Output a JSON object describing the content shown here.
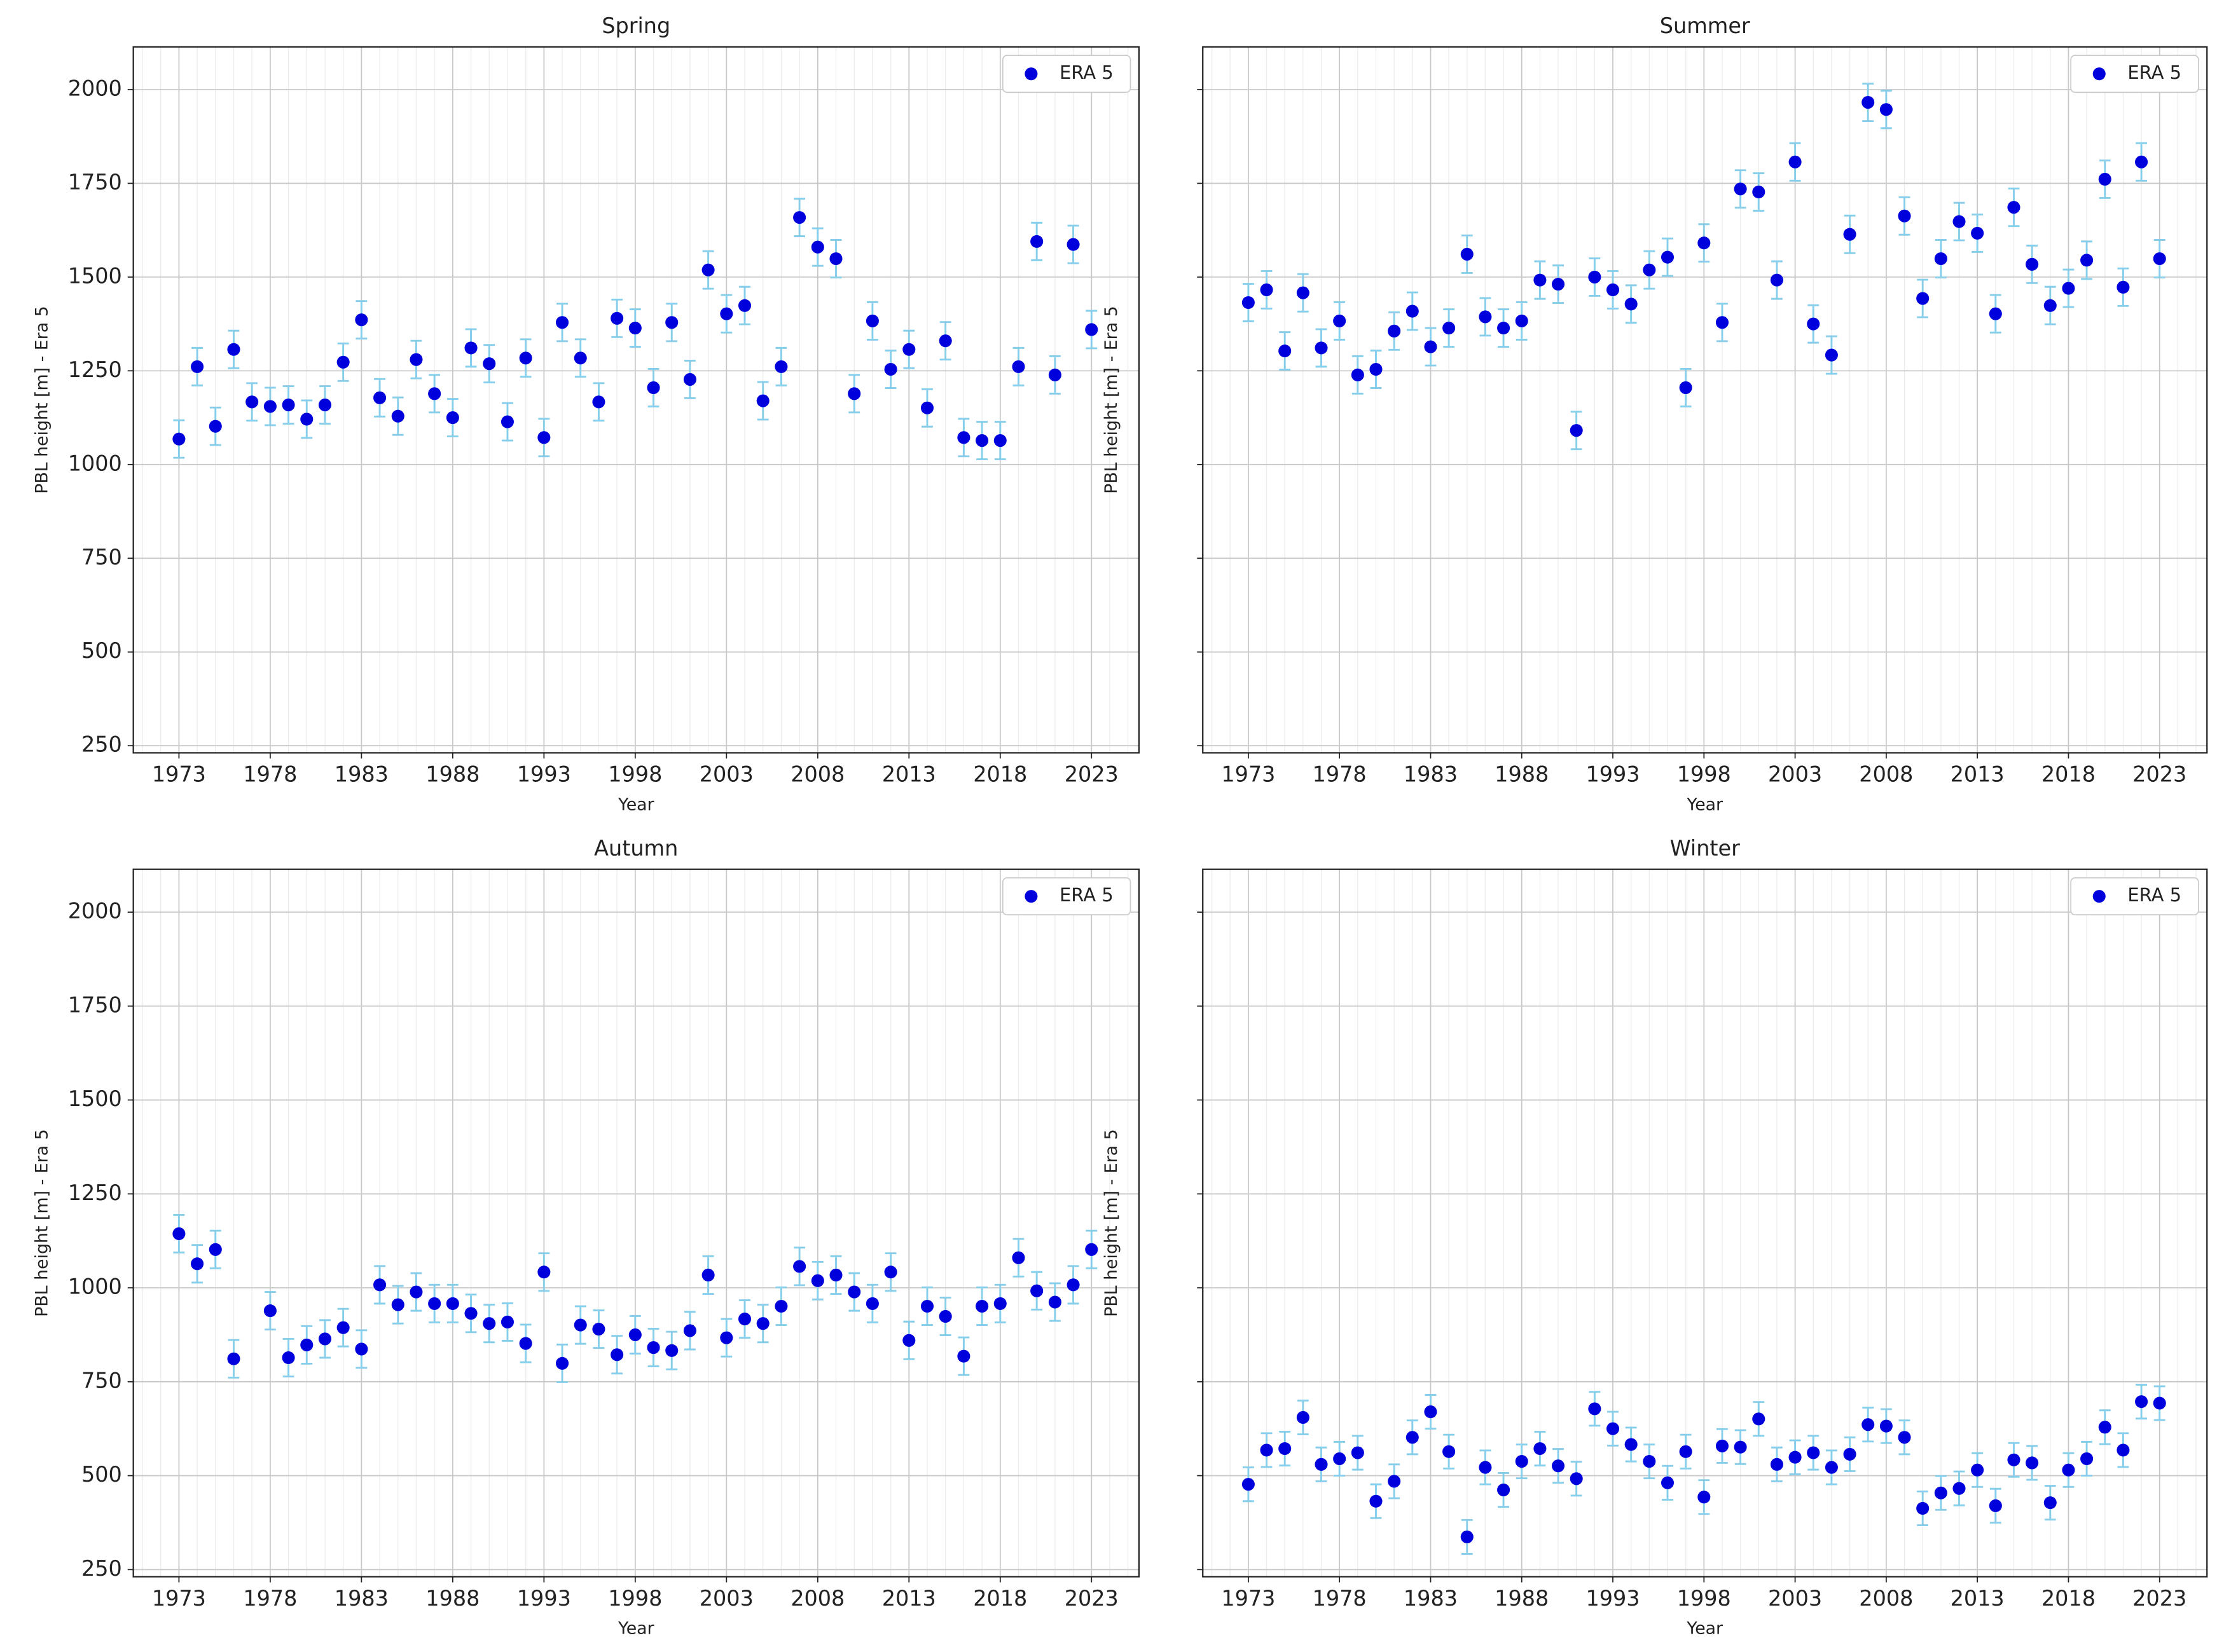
{
  "chart_data": [
    {
      "type": "scatter",
      "title": "Spring",
      "xlabel": "Year",
      "ylabel": "PBL height [m] - Era 5",
      "x": [
        1973,
        1974,
        1975,
        1976,
        1977,
        1978,
        1979,
        1980,
        1981,
        1982,
        1983,
        1984,
        1985,
        1986,
        1987,
        1988,
        1989,
        1990,
        1991,
        1992,
        1993,
        1994,
        1995,
        1996,
        1997,
        1998,
        1999,
        2000,
        2001,
        2002,
        2003,
        2004,
        2005,
        2006,
        2007,
        2008,
        2009,
        2010,
        2011,
        2012,
        2013,
        2014,
        2015,
        2016,
        2017,
        2018,
        2019,
        2020,
        2021,
        2022,
        2023
      ],
      "series": [
        {
          "name": "ERA 5",
          "color": "#0000dd",
          "values": [
            1068,
            1261,
            1102,
            1307,
            1167,
            1155,
            1159,
            1121,
            1159,
            1273,
            1386,
            1178,
            1129,
            1280,
            1189,
            1125,
            1311,
            1269,
            1114,
            1284,
            1072,
            1379,
            1284,
            1167,
            1390,
            1364,
            1205,
            1379,
            1227,
            1519,
            1402,
            1424,
            1170,
            1261,
            1659,
            1580,
            1549,
            1189,
            1383,
            1254,
            1307,
            1151,
            1330,
            1072,
            1064,
            1064,
            1261,
            1595,
            1239,
            1587,
            1360
          ]
        }
      ],
      "yerr": 50,
      "err_color": "#87ceeb",
      "xlim": [
        1970.5,
        2025.6
      ],
      "ylim": [
        231,
        2114
      ],
      "xticks": [
        1973,
        1978,
        1983,
        1988,
        1993,
        1998,
        2003,
        2008,
        2013,
        2018,
        2023
      ],
      "yticks": [
        250,
        500,
        750,
        1000,
        1250,
        1500,
        1750,
        2000
      ],
      "ytick_labels": true,
      "grid": true,
      "minor_grid": true,
      "legend": "upper right"
    },
    {
      "type": "scatter",
      "title": "Summer",
      "xlabel": "Year",
      "ylabel": "PBL height [m] - Era 5",
      "x": [
        1973,
        1974,
        1975,
        1976,
        1977,
        1978,
        1979,
        1980,
        1981,
        1982,
        1983,
        1984,
        1985,
        1986,
        1987,
        1988,
        1989,
        1990,
        1991,
        1992,
        1993,
        1994,
        1995,
        1996,
        1997,
        1998,
        1999,
        2000,
        2001,
        2002,
        2003,
        2004,
        2005,
        2006,
        2007,
        2008,
        2009,
        2010,
        2011,
        2012,
        2013,
        2014,
        2015,
        2016,
        2017,
        2018,
        2019,
        2020,
        2021,
        2022,
        2023
      ],
      "series": [
        {
          "name": "ERA 5",
          "color": "#0000dd",
          "values": [
            1432,
            1466,
            1303,
            1458,
            1311,
            1383,
            1239,
            1254,
            1356,
            1409,
            1314,
            1364,
            1561,
            1394,
            1364,
            1383,
            1492,
            1481,
            1091,
            1500,
            1466,
            1428,
            1519,
            1553,
            1205,
            1591,
            1379,
            1735,
            1727,
            1492,
            1807,
            1375,
            1292,
            1614,
            1966,
            1947,
            1663,
            1443,
            1549,
            1648,
            1617,
            1402,
            1686,
            1534,
            1424,
            1470,
            1545,
            1761,
            1473,
            1807,
            1549
          ]
        }
      ],
      "yerr": 50,
      "err_color": "#87ceeb",
      "xlim": [
        1970.5,
        2025.6
      ],
      "ylim": [
        231,
        2114
      ],
      "xticks": [
        1973,
        1978,
        1983,
        1988,
        1993,
        1998,
        2003,
        2008,
        2013,
        2018,
        2023
      ],
      "yticks": [
        250,
        500,
        750,
        1000,
        1250,
        1500,
        1750,
        2000
      ],
      "ytick_labels": false,
      "grid": true,
      "minor_grid": true,
      "legend": "upper right"
    },
    {
      "type": "scatter",
      "title": "Autumn",
      "xlabel": "Year",
      "ylabel": "PBL height [m] - Era 5",
      "x": [
        1973,
        1974,
        1975,
        1976,
        1978,
        1979,
        1980,
        1981,
        1982,
        1983,
        1984,
        1985,
        1986,
        1987,
        1988,
        1989,
        1990,
        1991,
        1992,
        1993,
        1994,
        1995,
        1996,
        1997,
        1998,
        1999,
        2000,
        2001,
        2002,
        2003,
        2004,
        2005,
        2006,
        2007,
        2008,
        2009,
        2010,
        2011,
        2012,
        2013,
        2014,
        2015,
        2016,
        2017,
        2018,
        2019,
        2020,
        2021,
        2022,
        2023
      ],
      "series": [
        {
          "name": "ERA 5",
          "color": "#0000dd",
          "values": [
            1144,
            1064,
            1102,
            811,
            939,
            814,
            848,
            864,
            894,
            837,
            1008,
            955,
            989,
            958,
            958,
            932,
            905,
            909,
            852,
            1042,
            799,
            901,
            890,
            822,
            875,
            841,
            833,
            886,
            1034,
            867,
            917,
            905,
            951,
            1057,
            1019,
            1034,
            989,
            958,
            1042,
            860,
            951,
            924,
            818,
            951,
            958,
            1080,
            992,
            962,
            1008,
            1102
          ]
        }
      ],
      "yerr": 50,
      "err_color": "#87ceeb",
      "xlim": [
        1970.5,
        2025.6
      ],
      "ylim": [
        231,
        2114
      ],
      "xticks": [
        1973,
        1978,
        1983,
        1988,
        1993,
        1998,
        2003,
        2008,
        2013,
        2018,
        2023
      ],
      "yticks": [
        250,
        500,
        750,
        1000,
        1250,
        1500,
        1750,
        2000
      ],
      "ytick_labels": true,
      "grid": true,
      "minor_grid": true,
      "legend": "upper right"
    },
    {
      "type": "scatter",
      "title": "Winter",
      "xlabel": "Year",
      "ylabel": "PBL height [m] - Era 5",
      "x": [
        1973,
        1974,
        1975,
        1976,
        1977,
        1978,
        1979,
        1980,
        1981,
        1982,
        1983,
        1984,
        1985,
        1986,
        1987,
        1988,
        1989,
        1990,
        1991,
        1992,
        1993,
        1994,
        1995,
        1996,
        1997,
        1998,
        1999,
        2000,
        2001,
        2002,
        2003,
        2004,
        2005,
        2006,
        2007,
        2008,
        2009,
        2010,
        2011,
        2012,
        2013,
        2014,
        2015,
        2016,
        2017,
        2018,
        2019,
        2020,
        2021,
        2022,
        2023
      ],
      "series": [
        {
          "name": "ERA 5",
          "color": "#0000dd",
          "values": [
            477,
            568,
            572,
            655,
            530,
            545,
            561,
            432,
            485,
            602,
            670,
            564,
            337,
            522,
            462,
            538,
            572,
            526,
            492,
            678,
            625,
            583,
            538,
            481,
            564,
            443,
            579,
            576,
            651,
            530,
            549,
            561,
            522,
            557,
            636,
            632,
            602,
            413,
            454,
            466,
            515,
            420,
            542,
            534,
            428,
            515,
            545,
            629,
            568,
            697,
            693
          ]
        }
      ],
      "yerr": 45,
      "err_color": "#87ceeb",
      "xlim": [
        1970.5,
        2025.6
      ],
      "ylim": [
        231,
        2114
      ],
      "xticks": [
        1973,
        1978,
        1983,
        1988,
        1993,
        1998,
        2003,
        2008,
        2013,
        2018,
        2023
      ],
      "yticks": [
        250,
        500,
        750,
        1000,
        1250,
        1500,
        1750,
        2000
      ],
      "ytick_labels": false,
      "grid": true,
      "minor_grid": true,
      "legend": "upper right"
    }
  ]
}
